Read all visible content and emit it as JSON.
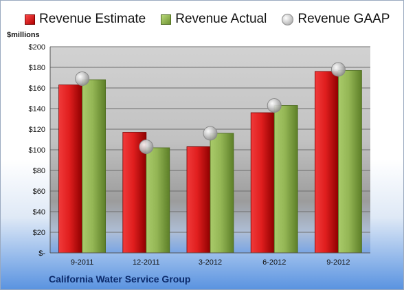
{
  "legend": {
    "estimate": "Revenue Estimate",
    "actual": "Revenue Actual",
    "gaap": "Revenue GAAP"
  },
  "unit_label": "$millions",
  "company": "California Water Service Group",
  "colors": {
    "estimate": "#d01818",
    "actual": "#8fb04a",
    "gaap": "#bdbdbd",
    "company_text": "#0b2a6b"
  },
  "chart_data": {
    "type": "bar",
    "title": "",
    "xlabel": "",
    "ylabel": "$millions",
    "categories": [
      "9-2011",
      "12-2011",
      "3-2012",
      "6-2012",
      "9-2012"
    ],
    "series": [
      {
        "name": "Revenue Estimate",
        "values": [
          163,
          117,
          103,
          136,
          176
        ]
      },
      {
        "name": "Revenue Actual",
        "values": [
          168,
          102,
          116,
          143,
          177
        ]
      },
      {
        "name": "Revenue GAAP",
        "values": [
          169,
          103,
          116,
          143,
          178
        ]
      }
    ],
    "ylim": [
      0,
      200
    ],
    "yticks": [
      0,
      20,
      40,
      60,
      80,
      100,
      120,
      140,
      160,
      180,
      200
    ],
    "ytick_labels": [
      "$-",
      "$20",
      "$40",
      "$60",
      "$80",
      "$100",
      "$120",
      "$140",
      "$160",
      "$180",
      "$200"
    ],
    "grid": true,
    "legend_position": "top"
  }
}
